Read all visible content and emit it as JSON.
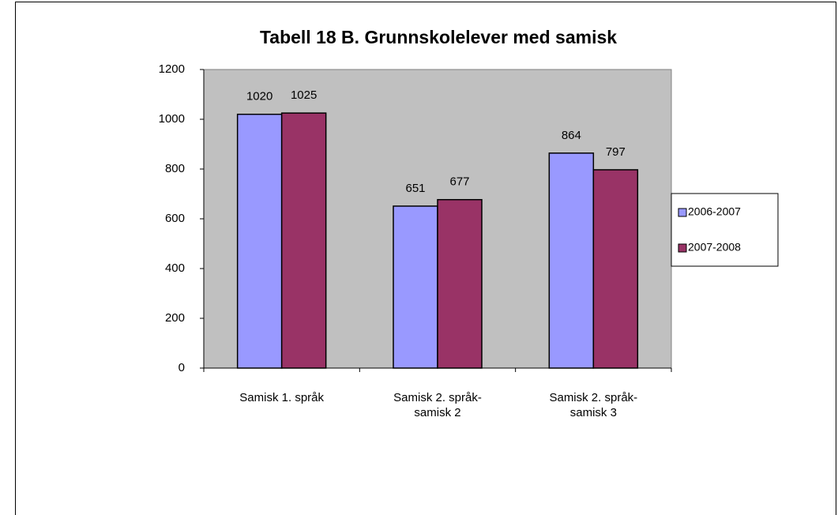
{
  "chart_data": {
    "type": "bar",
    "title": "Tabell 18 B. Grunnskolelever med samisk",
    "categories": [
      "Samisk 1. språk",
      "Samisk 2. språk-samisk 2",
      "Samisk 2. språk-samisk 3"
    ],
    "series": [
      {
        "name": "2006-2007",
        "color": "#9999ff",
        "values": [
          1020,
          651,
          864
        ]
      },
      {
        "name": "2007-2008",
        "color": "#993366",
        "values": [
          1025,
          677,
          797
        ]
      }
    ],
    "ylim": [
      0,
      1200
    ],
    "yticks": [
      0,
      200,
      400,
      600,
      800,
      1000,
      1200
    ],
    "legend": "right",
    "plot_background": "#c0c0c0"
  }
}
